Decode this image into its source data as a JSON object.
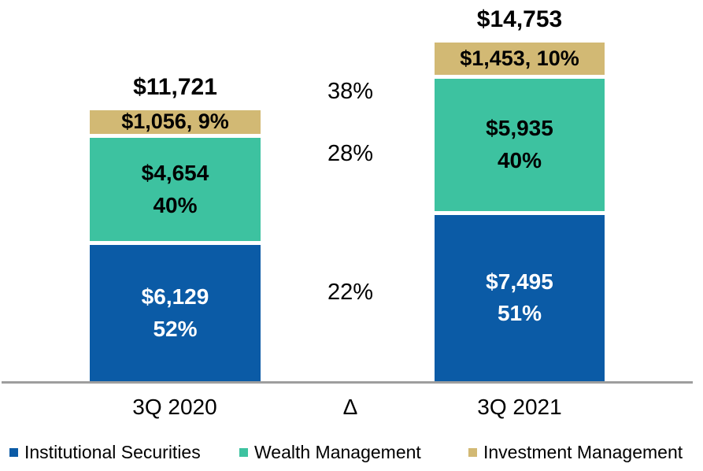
{
  "chart_data": {
    "type": "bar",
    "stacked": true,
    "orientation": "vertical",
    "categories": [
      "3Q 2020",
      "3Q 2021"
    ],
    "totals": {
      "values": [
        11721,
        14753
      ],
      "labels": [
        "$11,721",
        "$14,753"
      ]
    },
    "series": [
      {
        "name": "Institutional Securities",
        "color": "#0b5ba6",
        "values": [
          6129,
          7495
        ],
        "value_labels": [
          "$6,129",
          "$7,495"
        ],
        "pct_labels": [
          "52%",
          "51%"
        ]
      },
      {
        "name": "Wealth Management",
        "color": "#3dc2a0",
        "values": [
          4654,
          5935
        ],
        "value_labels": [
          "$4,654",
          "$5,935"
        ],
        "pct_labels": [
          "40%",
          "40%"
        ]
      },
      {
        "name": "Investment Management",
        "color": "#d2b974",
        "values": [
          1056,
          1453
        ],
        "combined_labels": [
          "$1,056, 9%",
          "$1,453, 10%"
        ]
      }
    ],
    "delta": {
      "axis_label": "Δ",
      "growth_labels": [
        "38%",
        "28%",
        "22%"
      ]
    },
    "legend": [
      "Institutional Securities",
      "Wealth Management",
      "Investment Management"
    ],
    "axis_color": "#9e9e9e",
    "background": "#ffffff",
    "grid": false,
    "legend_position": "bottom"
  }
}
